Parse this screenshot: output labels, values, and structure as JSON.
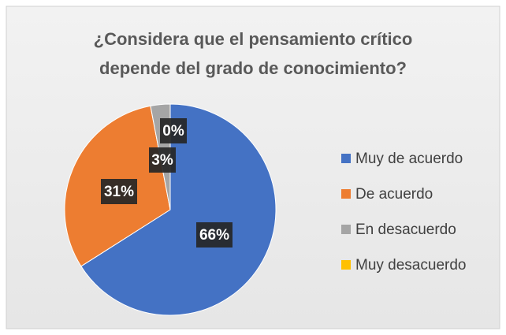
{
  "chart_data": {
    "type": "pie",
    "title": [
      "¿Considera que el pensamiento crítico",
      "depende del grado de conocimiento?"
    ],
    "categories": [
      "Muy de acuerdo",
      "De acuerdo",
      "En desacuerdo",
      "Muy desacuerdo"
    ],
    "values": [
      66,
      31,
      3,
      0
    ],
    "value_labels": [
      "66%",
      "31%",
      "3%",
      "0%"
    ],
    "colors": [
      "#4472c4",
      "#ed7d31",
      "#a5a5a5",
      "#ffc000"
    ],
    "legend": "right"
  }
}
